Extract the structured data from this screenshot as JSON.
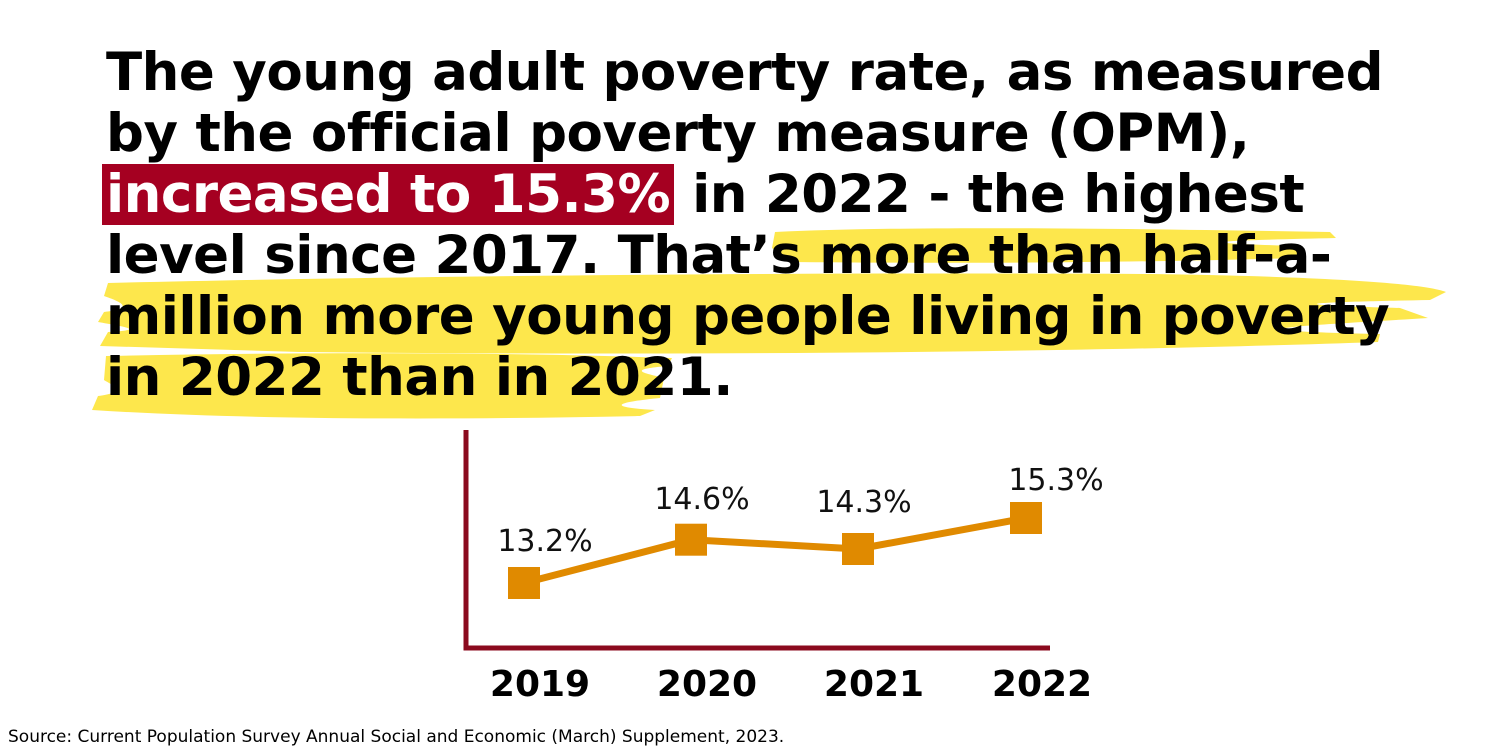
{
  "headline": {
    "line1": "The young adult poverty rate, as measured",
    "line2": "by the official poverty measure (OPM),",
    "line3_emphasis": "increased to  15.3%",
    "line3_rest": " in 2022 - the highest",
    "line4": "level since 2017. That’s more than half-a-",
    "line5": "million more young people living in poverty",
    "line6_text": "in 2022 than in 2021",
    "line6_period": "."
  },
  "colors": {
    "emphasis_bg": "#a50021",
    "emphasis_text": "#ffffff",
    "highlighter": "#fde74c",
    "axis": "#8b0a1e",
    "series": "#e08a00"
  },
  "chart_data": {
    "type": "line",
    "categories": [
      "2019",
      "2020",
      "2021",
      "2022"
    ],
    "series": [
      {
        "values": [
          13.2,
          14.6,
          14.3,
          15.3
        ]
      }
    ],
    "data_labels": [
      "13.2%",
      "14.6%",
      "14.3%",
      "15.3%"
    ],
    "marker": "square",
    "title": "",
    "xlabel": "",
    "ylabel": "",
    "y_axis_ticks_shown": false,
    "grid": false,
    "legend": "none"
  },
  "source": "Source: Current Population Survey Annual Social and Economic (March) Supplement, 2023."
}
